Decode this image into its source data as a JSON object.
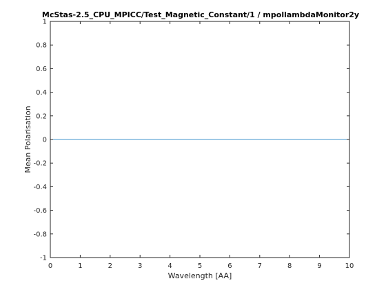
{
  "chart_data": {
    "type": "line",
    "title": "McStas-2.5_CPU_MPICC/Test_Magnetic_Constant/1 / mpollambdaMonitor2y",
    "xlabel": "Wavelength [AA]",
    "ylabel": "Mean Polarisation",
    "xlim": [
      0,
      10
    ],
    "ylim": [
      -1,
      1
    ],
    "xticks": [
      0,
      1,
      2,
      3,
      4,
      5,
      6,
      7,
      8,
      9,
      10
    ],
    "yticks": [
      -1,
      -0.8,
      -0.6,
      -0.4,
      -0.2,
      0,
      0.2,
      0.4,
      0.6,
      0.8,
      1
    ],
    "xtick_labels": [
      "0",
      "1",
      "2",
      "3",
      "4",
      "5",
      "6",
      "7",
      "8",
      "9",
      "10"
    ],
    "ytick_labels": [
      "-1",
      "-0.8",
      "-0.6",
      "-0.4",
      "-0.2",
      "0",
      "0.2",
      "0.4",
      "0.6",
      "0.8",
      "1"
    ],
    "grid": false,
    "series": [
      {
        "x": [
          0,
          10
        ],
        "y": [
          0,
          0
        ],
        "color": "#0072bd"
      }
    ]
  }
}
